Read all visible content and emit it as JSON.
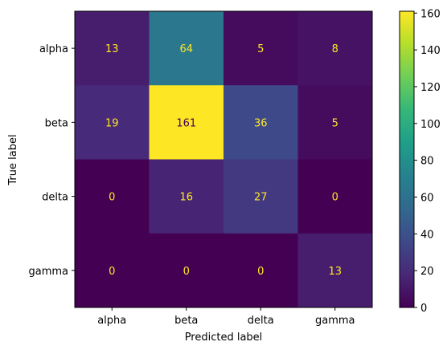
{
  "chart_data": {
    "type": "heatmap",
    "title": "",
    "xlabel": "Predicted label",
    "ylabel": "True label",
    "x_categories": [
      "alpha",
      "beta",
      "delta",
      "gamma"
    ],
    "y_categories": [
      "alpha",
      "beta",
      "delta",
      "gamma"
    ],
    "values": [
      [
        13,
        64,
        5,
        8
      ],
      [
        19,
        161,
        36,
        5
      ],
      [
        0,
        16,
        27,
        0
      ],
      [
        0,
        0,
        0,
        13
      ]
    ],
    "colormap": "viridis",
    "value_range": [
      0,
      161
    ],
    "colorbar_ticks": [
      0,
      20,
      40,
      60,
      80,
      100,
      120,
      140,
      160
    ],
    "grid": false,
    "colors": {
      "text_on_dark": "#fde725",
      "text_on_light": "#440154"
    }
  }
}
